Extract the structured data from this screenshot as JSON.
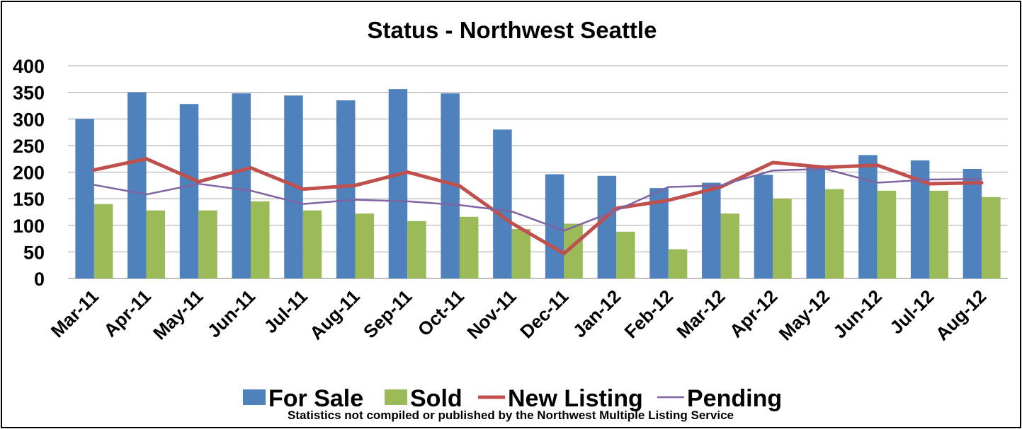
{
  "chart_data": {
    "type": "bar",
    "title": "Status - Northwest Seattle",
    "footnote": "Statistics  not compiled or published by the Northwest Multiple Listing Service",
    "categories": [
      "Mar-11",
      "Apr-11",
      "May-11",
      "Jun-11",
      "Jul-11",
      "Aug-11",
      "Sep-11",
      "Oct-11",
      "Nov-11",
      "Dec-11",
      "Jan-12",
      "Feb-12",
      "Mar-12",
      "Apr-12",
      "May-12",
      "Jun-12",
      "Jul-12",
      "Aug-12"
    ],
    "ylim": [
      0,
      400
    ],
    "yticks": [
      0,
      50,
      100,
      150,
      200,
      250,
      300,
      350,
      400
    ],
    "grid": true,
    "legend_position": "bottom",
    "series": [
      {
        "name": "For Sale",
        "kind": "bar",
        "color": "#4F81BD",
        "values": [
          300,
          350,
          328,
          348,
          344,
          335,
          356,
          348,
          280,
          196,
          193,
          170,
          180,
          195,
          210,
          232,
          222,
          206
        ]
      },
      {
        "name": "Sold",
        "kind": "bar",
        "color": "#9BBB59",
        "values": [
          140,
          128,
          128,
          145,
          128,
          122,
          108,
          116,
          93,
          103,
          88,
          55,
          122,
          150,
          168,
          165,
          165,
          153
        ]
      },
      {
        "name": "New Listing",
        "kind": "line",
        "color": "#C0504D",
        "values": [
          204,
          225,
          182,
          208,
          168,
          175,
          200,
          174,
          104,
          47,
          132,
          147,
          172,
          218,
          209,
          213,
          178,
          180
        ]
      },
      {
        "name": "Pending",
        "kind": "line",
        "color": "#8064A2",
        "values": [
          176,
          158,
          178,
          165,
          140,
          148,
          145,
          138,
          126,
          90,
          128,
          172,
          175,
          203,
          206,
          180,
          186,
          187
        ]
      }
    ]
  }
}
